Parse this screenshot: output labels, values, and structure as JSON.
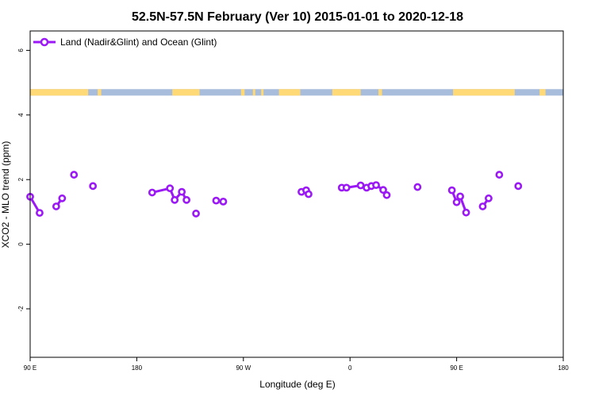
{
  "chart_data": {
    "type": "line",
    "title": "52.5N-57.5N February (Ver 10)   2015-01-01 to 2020-12-18",
    "xlabel": "Longitude (deg E)",
    "ylabel": "XCO2 - MLO trend (ppm)",
    "xlim": [
      90,
      540
    ],
    "ylim": [
      -3.5,
      6.6
    ],
    "x_ticks": [
      {
        "value": 90,
        "label": "90 E"
      },
      {
        "value": 180,
        "label": "180"
      },
      {
        "value": 270,
        "label": "90 W"
      },
      {
        "value": 360,
        "label": "0"
      },
      {
        "value": 450,
        "label": "90 E"
      },
      {
        "value": 540,
        "label": "180"
      }
    ],
    "y_ticks": [
      {
        "value": -2,
        "label": "-2"
      },
      {
        "value": 0,
        "label": "0"
      },
      {
        "value": 2,
        "label": "2"
      },
      {
        "value": 4,
        "label": "4"
      },
      {
        "value": 6,
        "label": "6"
      }
    ],
    "legend": {
      "position": "top-left"
    },
    "series": [
      {
        "name": "Land (Nadir&Glint) and Ocean (Glint)",
        "color": "#9b19f5",
        "points": [
          [
            90,
            1.47
          ],
          [
            98,
            0.97
          ],
          [
            112,
            1.17
          ],
          [
            117,
            1.42
          ],
          [
            127,
            2.15
          ],
          [
            143,
            1.8
          ],
          [
            193,
            1.6
          ],
          [
            208,
            1.73
          ],
          [
            212,
            1.37
          ],
          [
            218,
            1.62
          ],
          [
            222,
            1.37
          ],
          [
            230,
            0.95
          ],
          [
            247,
            1.35
          ],
          [
            253,
            1.32
          ],
          [
            319,
            1.62
          ],
          [
            323,
            1.67
          ],
          [
            325,
            1.55
          ],
          [
            353,
            1.75
          ],
          [
            357,
            1.75
          ],
          [
            369,
            1.82
          ],
          [
            374,
            1.75
          ],
          [
            378,
            1.8
          ],
          [
            382,
            1.83
          ],
          [
            388,
            1.68
          ],
          [
            391,
            1.52
          ],
          [
            417,
            1.77
          ],
          [
            446,
            1.67
          ],
          [
            450,
            1.3
          ],
          [
            453,
            1.48
          ],
          [
            458,
            0.98
          ],
          [
            472,
            1.17
          ],
          [
            477,
            1.42
          ],
          [
            486,
            2.15
          ],
          [
            502,
            1.8
          ]
        ],
        "segments": [
          [
            0,
            1
          ],
          [
            2,
            3
          ],
          [
            6,
            7
          ],
          [
            7,
            8
          ],
          [
            8,
            9
          ],
          [
            9,
            10
          ],
          [
            12,
            13
          ],
          [
            14,
            15
          ],
          [
            15,
            16
          ],
          [
            18,
            19
          ],
          [
            19,
            20
          ],
          [
            20,
            21
          ],
          [
            21,
            22
          ],
          [
            22,
            23
          ],
          [
            23,
            24
          ],
          [
            26,
            27
          ],
          [
            27,
            28
          ],
          [
            28,
            29
          ],
          [
            30,
            31
          ]
        ]
      }
    ],
    "land_ocean_strip": {
      "ymin": 4.6,
      "ymax": 4.8,
      "land_color": "#ffd976",
      "ocean_color": "#a8bcdc",
      "land_ranges": [
        [
          90,
          139
        ],
        [
          147,
          150
        ],
        [
          210,
          233
        ],
        [
          268,
          271
        ],
        [
          278,
          280
        ],
        [
          285,
          287
        ],
        [
          300,
          318
        ],
        [
          345,
          369
        ],
        [
          384,
          387
        ],
        [
          447,
          499
        ],
        [
          520,
          525
        ]
      ]
    }
  }
}
